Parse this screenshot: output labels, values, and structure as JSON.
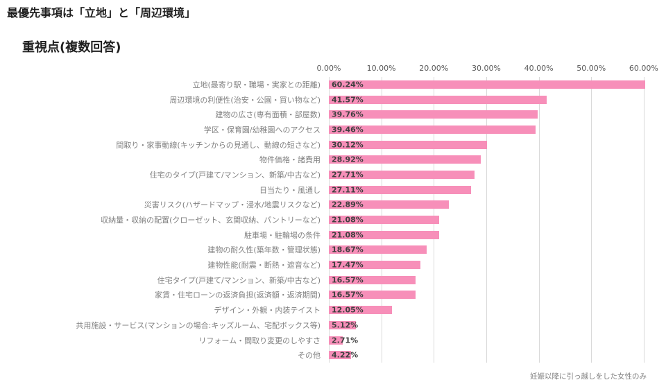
{
  "page": {
    "title": "最優先事項は「立地」と「周辺環境」",
    "footnote": "妊娠以降に引っ越しをした女性のみ"
  },
  "chart_data": {
    "type": "bar",
    "orientation": "horizontal",
    "title": "重視点(複数回答)",
    "categories": [
      "立地(最寄り駅・職場・実家との距離)",
      "周辺環境の利便性(治安・公園・買い物など)",
      "建物の広さ(専有面積・部屋数)",
      "学区・保育園/幼稚園へのアクセス",
      "間取り・家事動線(キッチンからの見通し、動線の短さなど)",
      "物件価格・諸費用",
      "住宅のタイプ(戸建て/マンション、新築/中古など)",
      "日当たり・風通し",
      "災害リスク(ハザードマップ・浸水/地震リスクなど)",
      "収納量・収納の配置(クローゼット、玄関収納、パントリーなど)",
      "駐車場・駐輪場の条件",
      "建物の耐久性(築年数・管理状態)",
      "建物性能(耐震・断熱・遮音など)",
      "住宅タイプ(戸建て/マンション、新築/中古など)",
      "家賃・住宅ローンの返済負担(返済額・返済期間)",
      "デザイン・外観・内装テイスト",
      "共用施設・サービス(マンションの場合:キッズルーム、宅配ボックス等)",
      "リフォーム・間取り変更のしやすさ",
      "その他"
    ],
    "values": [
      60.24,
      41.57,
      39.76,
      39.46,
      30.12,
      28.92,
      27.71,
      27.11,
      22.89,
      21.08,
      21.08,
      18.67,
      17.47,
      16.57,
      16.57,
      12.05,
      5.12,
      2.71,
      4.22
    ],
    "value_labels": [
      "60.24%",
      "41.57%",
      "39.76%",
      "39.46%",
      "30.12%",
      "28.92%",
      "27.71%",
      "27.11%",
      "22.89%",
      "21.08%",
      "21.08%",
      "18.67%",
      "17.47%",
      "16.57%",
      "16.57%",
      "12.05%",
      "5.12%",
      "2.71%",
      "4.22%"
    ],
    "x_ticks": [
      "0.00%",
      "10.00%",
      "20.00%",
      "30.00%",
      "40.00%",
      "50.00%",
      "60.00%"
    ],
    "x_tick_values": [
      0,
      10,
      20,
      30,
      40,
      50,
      60
    ],
    "axis_max": 62,
    "xlabel": "",
    "ylabel": "",
    "legend": "none",
    "grid": "vertical",
    "bar_color": "#F78FB9",
    "grid_color": "#D9D9D9",
    "value_label_color": "#404040",
    "category_label_color": "#808080",
    "axis_label_color": "#595959",
    "title_color": "#1F1F1F"
  }
}
